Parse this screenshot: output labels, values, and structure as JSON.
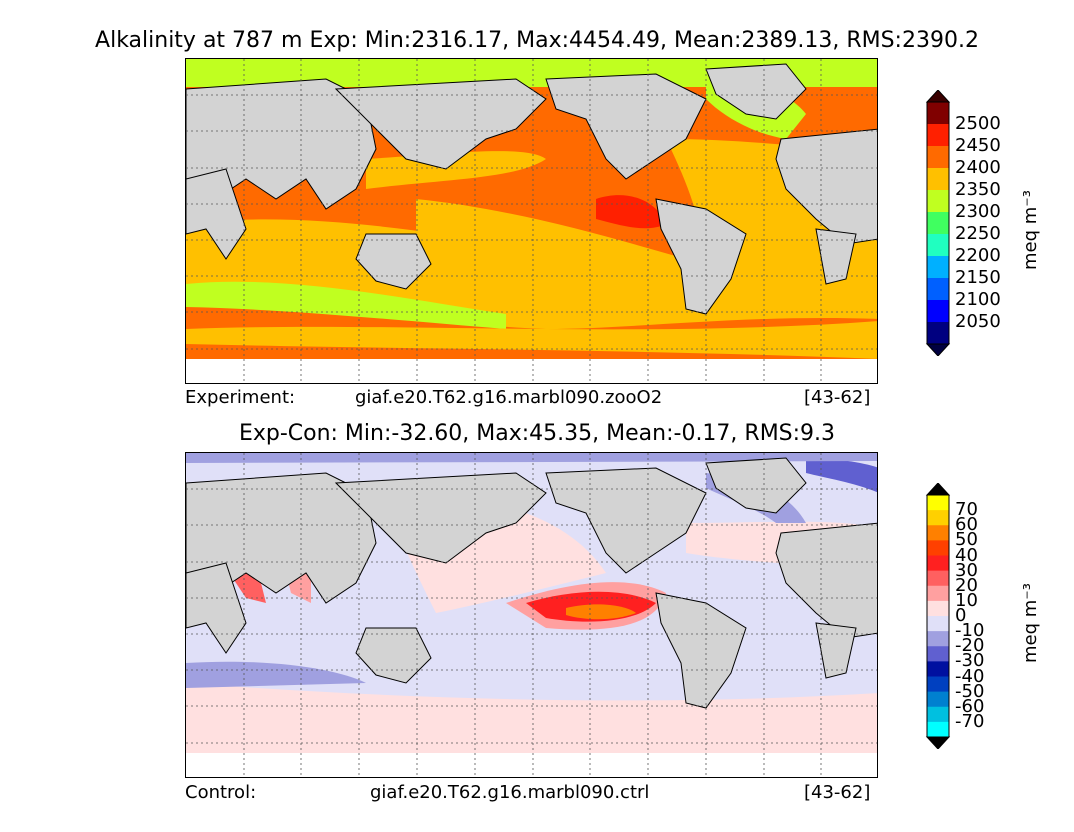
{
  "panels": [
    {
      "title": "Alkalinity at 787 m Exp: Min:2316.17, Max:4454.49, Mean:2389.13, RMS:2390.2",
      "footer": {
        "label": "Experiment:",
        "case": "giaf.e20.T62.g16.marbl090.zooO2",
        "years": "[43-62]"
      },
      "colorbar": {
        "unit": "meq m⁻³",
        "ticks": [
          "2500",
          "2450",
          "2400",
          "2350",
          "2300",
          "2250",
          "2200",
          "2150",
          "2100",
          "2050"
        ],
        "colors": [
          "#800000",
          "#ff2000",
          "#ff6a00",
          "#ffc000",
          "#c0ff20",
          "#40ff60",
          "#20ffc0",
          "#00b0ff",
          "#0060ff",
          "#0000ff",
          "#000080"
        ]
      }
    },
    {
      "title": "Exp-Con: Min:-32.60, Max:45.35, Mean:-0.17, RMS:9.3",
      "footer": {
        "label": "Control:",
        "case": "giaf.e20.T62.g16.marbl090.ctrl",
        "years": "[43-62]"
      },
      "colorbar": {
        "unit": "meq m⁻³",
        "ticks": [
          "70",
          "60",
          "50",
          "40",
          "30",
          "20",
          "10",
          "0",
          "-10",
          "-20",
          "-30",
          "-40",
          "-50",
          "-60",
          "-70"
        ],
        "colors": [
          "#ffff00",
          "#ffd000",
          "#ff8000",
          "#ff4000",
          "#ff2020",
          "#ff6060",
          "#ffa0a0",
          "#ffe0e0",
          "#e0e0f8",
          "#a0a0e0",
          "#6060d0",
          "#0010a0",
          "#0040c0",
          "#0080d0",
          "#00c0e0",
          "#00ffff"
        ]
      }
    }
  ]
}
